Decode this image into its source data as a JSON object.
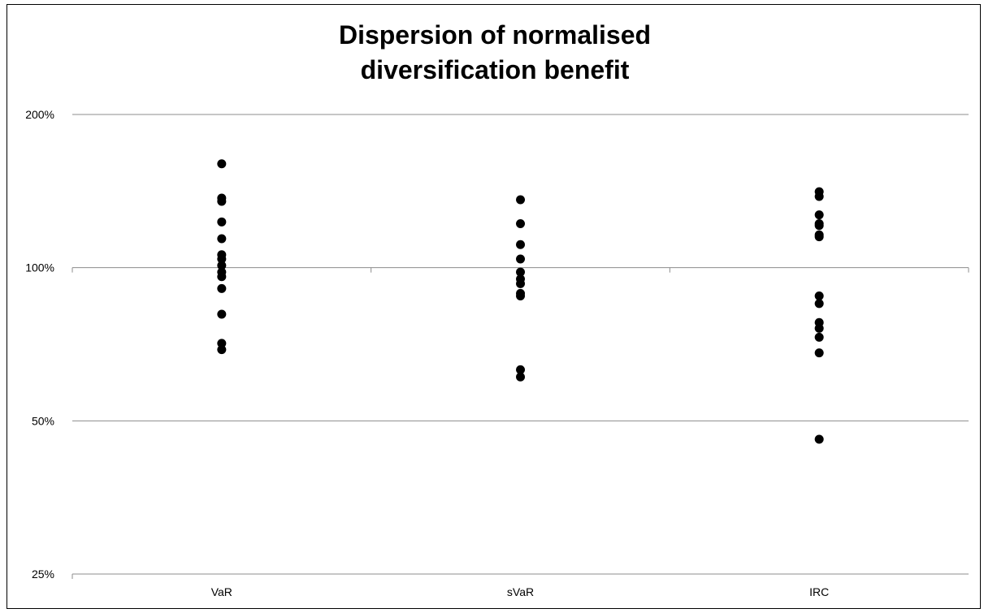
{
  "chart_data": {
    "type": "scatter",
    "title_lines": [
      "Dispersion of normalised",
      "diversification benefit"
    ],
    "xlabel": "",
    "ylabel": "",
    "y_scale": "log",
    "ylim": [
      0.25,
      2.0
    ],
    "y_ticks": [
      {
        "value": 0.25,
        "label": "25%"
      },
      {
        "value": 0.5,
        "label": "50%"
      },
      {
        "value": 1.0,
        "label": "100%"
      },
      {
        "value": 2.0,
        "label": "200%"
      }
    ],
    "grid": true,
    "legend": "none",
    "categories": [
      "VaR",
      "sVaR",
      "IRC"
    ],
    "series": [
      {
        "category": "VaR",
        "values": [
          1.6,
          1.37,
          1.35,
          1.23,
          1.14,
          1.06,
          1.04,
          1.01,
          0.98,
          0.96,
          0.91,
          0.81,
          0.71,
          0.69
        ]
      },
      {
        "category": "sVaR",
        "values": [
          1.36,
          1.22,
          1.11,
          1.04,
          0.98,
          0.95,
          0.93,
          0.89,
          0.88,
          0.63,
          0.61
        ]
      },
      {
        "category": "IRC",
        "values": [
          1.41,
          1.38,
          1.27,
          1.22,
          1.21,
          1.16,
          1.15,
          0.88,
          0.85,
          0.78,
          0.76,
          0.73,
          0.68,
          0.46
        ]
      }
    ],
    "colors": {
      "marker": "#000000",
      "grid": "#8c8c8c",
      "axis": "#8c8c8c",
      "frame": "#000000"
    }
  }
}
